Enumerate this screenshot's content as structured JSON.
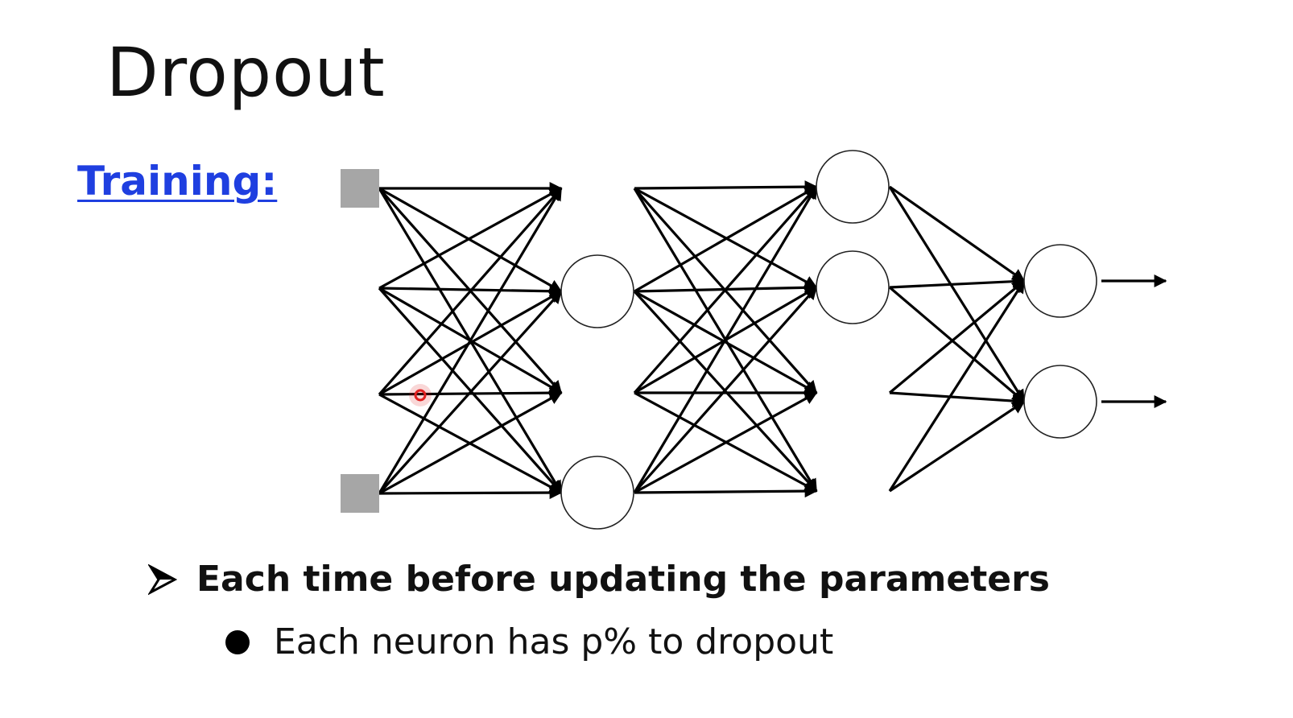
{
  "slide": {
    "title": "Dropout",
    "section_label": "Training:"
  },
  "bullets": {
    "main": {
      "icon": "arrow-bullet-icon",
      "text": "Each time before updating the parameters"
    },
    "sub": {
      "icon": "dot-bullet-icon",
      "text": "Each neuron has p% to dropout"
    }
  },
  "network": {
    "layers": [
      {
        "name": "input",
        "size": 4,
        "present": [
          true,
          false,
          false,
          true
        ],
        "shape": "square"
      },
      {
        "name": "hidden-1",
        "size": 4,
        "present": [
          false,
          true,
          false,
          true
        ],
        "shape": "circle"
      },
      {
        "name": "hidden-2",
        "size": 4,
        "present": [
          true,
          true,
          false,
          false
        ],
        "shape": "circle"
      },
      {
        "name": "output",
        "size": 2,
        "present": [
          true,
          true
        ],
        "shape": "circle"
      }
    ],
    "colors": {
      "edge": "#000000",
      "neuron_fill": "#ffffff",
      "input_fill": "#a6a6a6",
      "cursor": "#e02020"
    }
  },
  "cursor_icon": "pointer-cursor-icon"
}
